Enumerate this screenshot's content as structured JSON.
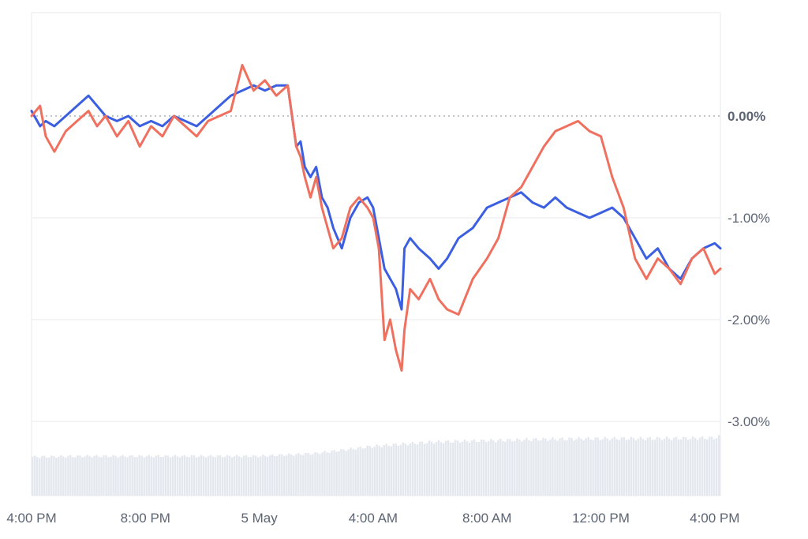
{
  "chart_data": {
    "type": "line",
    "title": "",
    "xlabel": "",
    "ylabel": "",
    "x_tick_labels": [
      "4:00 PM",
      "8:00 PM",
      "5 May",
      "4:00 AM",
      "8:00 AM",
      "12:00 PM",
      "4:00 PM"
    ],
    "x_range_hours": [
      0,
      24.2
    ],
    "x_tick_hours": [
      0,
      4,
      8,
      12,
      16,
      20,
      24
    ],
    "y_ticks": [
      {
        "value": 0,
        "label": "0.00%"
      },
      {
        "value": -1,
        "label": "-1.00%"
      },
      {
        "value": -2,
        "label": "-2.00%"
      },
      {
        "value": -3,
        "label": "-3.00%"
      }
    ],
    "ylim": [
      -3.0,
      1.0
    ],
    "grid": true,
    "baseline_dotted_at": 0,
    "series": [
      {
        "color": "#3b5fe0",
        "x": [
          0,
          0.3,
          0.5,
          0.8,
          1.2,
          1.6,
          2.0,
          2.3,
          2.6,
          3.0,
          3.4,
          3.8,
          4.2,
          4.6,
          5.0,
          5.4,
          5.8,
          6.2,
          6.6,
          7.0,
          7.4,
          7.8,
          8.2,
          8.6,
          9.0,
          9.3,
          9.45,
          9.6,
          9.8,
          10.0,
          10.2,
          10.4,
          10.6,
          10.9,
          11.2,
          11.5,
          11.8,
          12.0,
          12.2,
          12.4,
          12.6,
          12.8,
          13.0,
          13.1,
          13.3,
          13.6,
          14.0,
          14.3,
          14.6,
          15.0,
          15.5,
          16.0,
          16.4,
          16.8,
          17.2,
          17.6,
          18.0,
          18.4,
          18.8,
          19.2,
          19.6,
          20.0,
          20.4,
          20.8,
          21.2,
          21.6,
          22.0,
          22.4,
          22.8,
          23.2,
          23.6,
          24.0,
          24.2
        ],
        "values": [
          0.05,
          -0.1,
          -0.05,
          -0.1,
          0.0,
          0.1,
          0.2,
          0.1,
          0.0,
          -0.05,
          0.0,
          -0.1,
          -0.05,
          -0.1,
          0.0,
          -0.05,
          -0.1,
          0.0,
          0.1,
          0.2,
          0.25,
          0.3,
          0.25,
          0.3,
          0.3,
          -0.3,
          -0.25,
          -0.5,
          -0.6,
          -0.5,
          -0.8,
          -0.9,
          -1.1,
          -1.3,
          -1.0,
          -0.85,
          -0.8,
          -0.9,
          -1.2,
          -1.5,
          -1.6,
          -1.7,
          -1.9,
          -1.3,
          -1.2,
          -1.3,
          -1.4,
          -1.5,
          -1.4,
          -1.2,
          -1.1,
          -0.9,
          -0.85,
          -0.8,
          -0.75,
          -0.85,
          -0.9,
          -0.8,
          -0.9,
          -0.95,
          -1.0,
          -0.95,
          -0.9,
          -1.0,
          -1.2,
          -1.4,
          -1.3,
          -1.5,
          -1.6,
          -1.4,
          -1.3,
          -1.25,
          -1.3
        ]
      },
      {
        "color": "#f07060",
        "x": [
          0,
          0.3,
          0.5,
          0.8,
          1.2,
          1.6,
          2.0,
          2.3,
          2.6,
          3.0,
          3.4,
          3.8,
          4.2,
          4.6,
          5.0,
          5.4,
          5.8,
          6.2,
          6.6,
          7.0,
          7.4,
          7.8,
          8.2,
          8.6,
          9.0,
          9.3,
          9.45,
          9.6,
          9.8,
          10.0,
          10.2,
          10.4,
          10.6,
          10.9,
          11.2,
          11.5,
          11.8,
          12.0,
          12.2,
          12.4,
          12.6,
          12.8,
          13.0,
          13.1,
          13.3,
          13.6,
          14.0,
          14.3,
          14.6,
          15.0,
          15.5,
          16.0,
          16.4,
          16.8,
          17.2,
          17.6,
          18.0,
          18.4,
          18.8,
          19.2,
          19.6,
          20.0,
          20.4,
          20.8,
          21.2,
          21.6,
          22.0,
          22.4,
          22.8,
          23.2,
          23.6,
          24.0,
          24.2
        ],
        "values": [
          0.0,
          0.1,
          -0.2,
          -0.35,
          -0.15,
          -0.05,
          0.05,
          -0.1,
          0.0,
          -0.2,
          -0.05,
          -0.3,
          -0.1,
          -0.2,
          0.0,
          -0.1,
          -0.2,
          -0.05,
          0.0,
          0.05,
          0.5,
          0.25,
          0.35,
          0.2,
          0.3,
          -0.3,
          -0.4,
          -0.6,
          -0.8,
          -0.6,
          -0.9,
          -1.1,
          -1.3,
          -1.2,
          -0.9,
          -0.8,
          -0.9,
          -1.0,
          -1.3,
          -2.2,
          -2.0,
          -2.3,
          -2.5,
          -2.1,
          -1.7,
          -1.8,
          -1.6,
          -1.8,
          -1.9,
          -1.95,
          -1.6,
          -1.4,
          -1.2,
          -0.8,
          -0.7,
          -0.5,
          -0.3,
          -0.15,
          -0.1,
          -0.05,
          -0.15,
          -0.2,
          -0.6,
          -0.9,
          -1.4,
          -1.6,
          -1.4,
          -1.5,
          -1.65,
          -1.4,
          -1.3,
          -1.55,
          -1.5
        ]
      }
    ],
    "volume": {
      "color": "#e3e7ee",
      "x": [
        0,
        2,
        4,
        6,
        8,
        10,
        12,
        14,
        16,
        18,
        20,
        22,
        24,
        24.2
      ],
      "values": [
        0.55,
        0.56,
        0.56,
        0.56,
        0.56,
        0.6,
        0.7,
        0.76,
        0.78,
        0.8,
        0.81,
        0.81,
        0.82,
        0.84
      ]
    }
  }
}
